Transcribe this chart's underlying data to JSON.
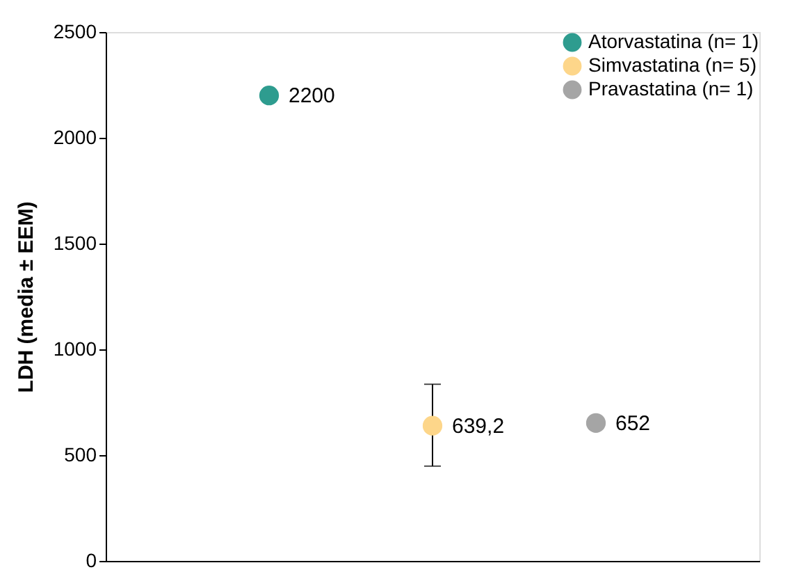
{
  "chart_data": {
    "type": "scatter",
    "ylabel": "LDH (media ± EEM)",
    "categories": [
      null,
      null,
      null
    ],
    "series": [
      {
        "name": "Atorvastatina (n= 1)",
        "color": "#2e9c8f",
        "values": [
          2200,
          null,
          null
        ],
        "value_labels": [
          "2200",
          null,
          null
        ]
      },
      {
        "name": "Simvastatina (n= 5)",
        "color": "#fdd68a",
        "values": [
          null,
          639.2,
          null
        ],
        "value_labels": [
          null,
          "639,2",
          null
        ],
        "errors": [
          null,
          [
            448,
            835
          ],
          null
        ]
      },
      {
        "name": "Pravastatina (n= 1)",
        "color": "#a5a5a5",
        "values": [
          null,
          null,
          652
        ],
        "value_labels": [
          null,
          null,
          "652"
        ]
      }
    ],
    "ylim": [
      0,
      2500
    ],
    "yticks": [
      0,
      500,
      1000,
      1500,
      2000,
      2500
    ],
    "grid": false,
    "legend": "top right",
    "marker": "circle"
  }
}
